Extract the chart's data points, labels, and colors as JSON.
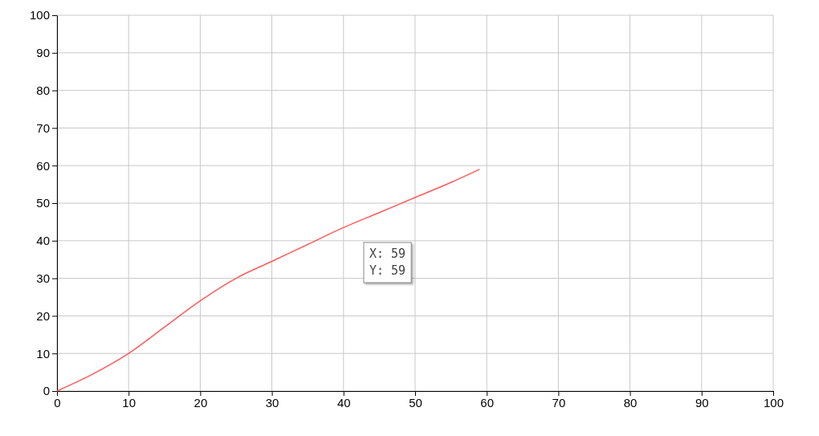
{
  "chart_data": {
    "type": "line",
    "x": [
      0,
      5,
      10,
      15,
      20,
      25,
      30,
      35,
      40,
      45,
      50,
      55,
      59
    ],
    "series": [
      {
        "color": "#ff5a5a",
        "values": [
          0,
          4.5,
          10,
          17,
          24,
          30,
          34.5,
          39,
          43.5,
          47.5,
          51.5,
          55.5,
          59
        ]
      }
    ],
    "xlim": [
      0,
      100
    ],
    "xticks": [
      0,
      10,
      20,
      30,
      40,
      50,
      60,
      70,
      80,
      90,
      100
    ],
    "ylim": [
      0,
      100
    ],
    "yticks": [
      0,
      10,
      20,
      30,
      40,
      50,
      60,
      70,
      80,
      90,
      100
    ],
    "grid": true,
    "marker": "none",
    "line_style": "solid",
    "annotations": [
      "X: 59\nY: 59"
    ]
  }
}
